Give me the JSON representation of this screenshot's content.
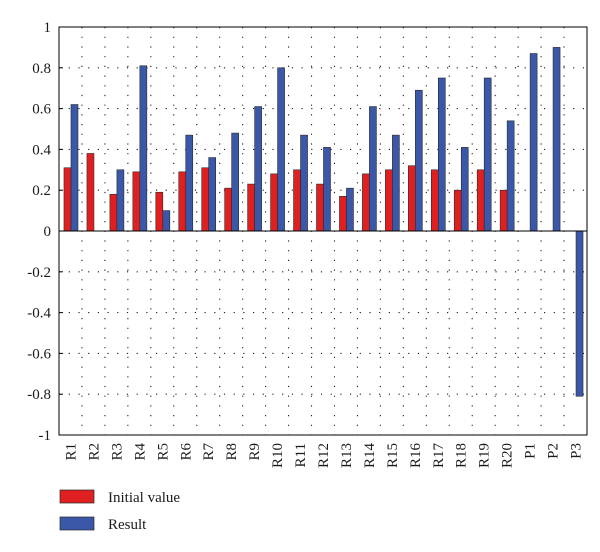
{
  "chart_data": {
    "type": "bar",
    "categories": [
      "R1",
      "R2",
      "R3",
      "R4",
      "R5",
      "R6",
      "R7",
      "R8",
      "R9",
      "R10",
      "R11",
      "R12",
      "R13",
      "R14",
      "R15",
      "R16",
      "R17",
      "R18",
      "R19",
      "R20",
      "P1",
      "P2",
      "P3"
    ],
    "series": [
      {
        "name": "Initial value",
        "color": "#e02020",
        "values": [
          0.31,
          0.38,
          0.18,
          0.29,
          0.19,
          0.29,
          0.31,
          0.21,
          0.23,
          0.28,
          0.3,
          0.23,
          0.17,
          0.28,
          0.3,
          0.32,
          0.3,
          0.2,
          0.3,
          0.2,
          0,
          0,
          0
        ]
      },
      {
        "name": "Result",
        "color": "#3a57a8",
        "values": [
          0.62,
          0,
          0.3,
          0.81,
          0.1,
          0.47,
          0.36,
          0.48,
          0.61,
          0.8,
          0.47,
          0.41,
          0.21,
          0.61,
          0.47,
          0.69,
          0.75,
          0.41,
          0.75,
          0.54,
          0.87,
          0.9,
          -0.81
        ]
      }
    ],
    "title": "",
    "xlabel": "",
    "ylabel": "",
    "ylim": [
      -1,
      1
    ],
    "yticks": [
      "1",
      "0.8",
      "0.6",
      "0.4",
      "0.2",
      "0",
      "-0.2",
      "-0.4",
      "-0.6",
      "-0.8",
      "-1"
    ],
    "grid": "dotted",
    "legend_position": "bottom-left"
  }
}
